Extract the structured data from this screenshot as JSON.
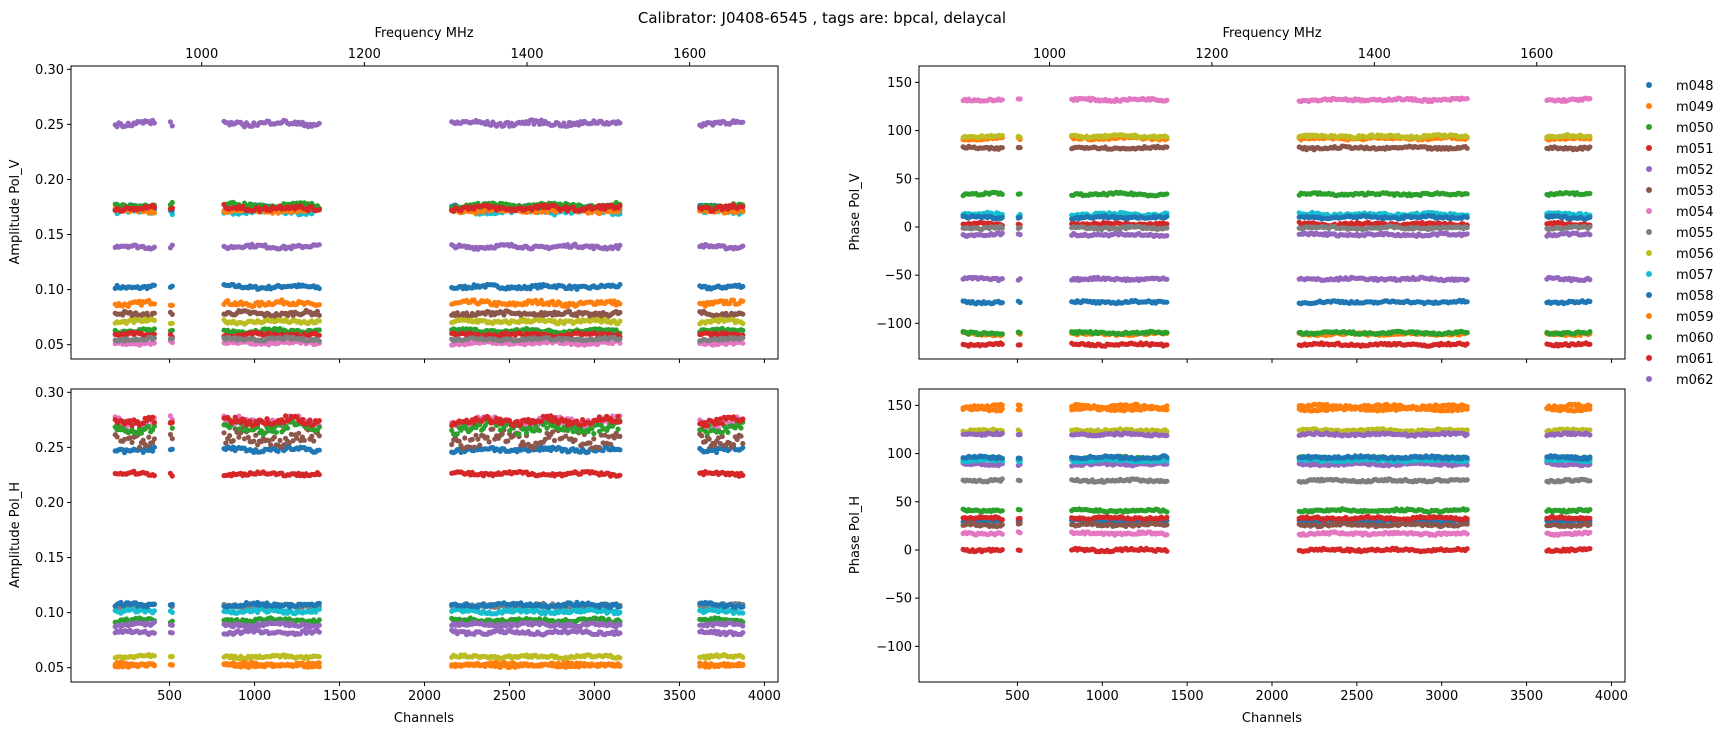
{
  "figure": {
    "suptitle": "Calibrator: J0408-6545 , tags are: bpcal, delaycal"
  },
  "legend": {
    "placement": "right, outside plot area",
    "entries": [
      "m048",
      "m049",
      "m050",
      "m051",
      "m052",
      "m053",
      "m054",
      "m055",
      "m056",
      "m057",
      "m058",
      "m059",
      "m060",
      "m061",
      "m062"
    ]
  },
  "palette": [
    "#1f77b4",
    "#ff7f0e",
    "#2ca02c",
    "#d62728",
    "#9467bd",
    "#8c564b",
    "#e377c2",
    "#7f7f7f",
    "#bcbd22",
    "#17becf"
  ],
  "chart_data": [
    {
      "type": "scatter",
      "panel": "top-left",
      "ylabel": "Amplitude Pol_V",
      "xlabel": "",
      "top_xlabel": "Frequency MHz",
      "xlim": [
        -80,
        4080
      ],
      "ylim": [
        0.037,
        0.303
      ],
      "yticks": [
        "0.05",
        "0.10",
        "0.15",
        "0.20",
        "0.25",
        "0.30"
      ],
      "top_ticks": [
        "1000",
        "1200",
        "1400",
        "1600"
      ],
      "series": [
        {
          "name": "m048",
          "y": 0.1025,
          "noise": 0.0015
        },
        {
          "name": "m049",
          "y": 0.0875,
          "noise": 0.002
        },
        {
          "name": "m050",
          "y": 0.0625,
          "noise": 0.0015
        },
        {
          "name": "m051",
          "y": 0.059,
          "noise": 0.0015
        },
        {
          "name": "m052",
          "y": 0.139,
          "noise": 0.0015
        },
        {
          "name": "m053",
          "y": 0.078,
          "noise": 0.002
        },
        {
          "name": "m054",
          "y": 0.0515,
          "noise": 0.0012
        },
        {
          "name": "m055",
          "y": 0.055,
          "noise": 0.0012
        },
        {
          "name": "m056",
          "y": 0.071,
          "noise": 0.0015
        },
        {
          "name": "m057",
          "y": 0.171,
          "noise": 0.002
        },
        {
          "name": "m058",
          "y": 0.174,
          "noise": 0.002
        },
        {
          "name": "m059",
          "y": 0.172,
          "noise": 0.002
        },
        {
          "name": "m060",
          "y": 0.176,
          "noise": 0.002
        },
        {
          "name": "m061",
          "y": 0.174,
          "noise": 0.002
        },
        {
          "name": "m062",
          "y": 0.251,
          "noise": 0.002
        }
      ]
    },
    {
      "type": "scatter",
      "panel": "top-right",
      "ylabel": "Phase Pol_V",
      "xlabel": "",
      "top_xlabel": "Frequency MHz",
      "xlim": [
        -80,
        4080
      ],
      "ylim": [
        -137,
        167
      ],
      "yticks": [
        "−100",
        "−50",
        "0",
        "50",
        "100",
        "150"
      ],
      "top_ticks": [
        "1000",
        "1200",
        "1400",
        "1600"
      ],
      "series": [
        {
          "name": "m048",
          "y": -78,
          "noise": 1.2
        },
        {
          "name": "m049",
          "y": 92,
          "noise": 1.2
        },
        {
          "name": "m050",
          "y": 34,
          "noise": 1.2
        },
        {
          "name": "m051",
          "y": 3,
          "noise": 1.2
        },
        {
          "name": "m052",
          "y": -54,
          "noise": 1.2
        },
        {
          "name": "m053",
          "y": 82,
          "noise": 1.2
        },
        {
          "name": "m054",
          "y": 132,
          "noise": 1.2
        },
        {
          "name": "m055",
          "y": -1,
          "noise": 1.2
        },
        {
          "name": "m056",
          "y": 94,
          "noise": 1.2
        },
        {
          "name": "m057",
          "y": 13,
          "noise": 1.5
        },
        {
          "name": "m058",
          "y": 10,
          "noise": 1.2
        },
        {
          "name": "m059",
          "y": -111,
          "noise": 1.2
        },
        {
          "name": "m060",
          "y": -110,
          "noise": 1.2
        },
        {
          "name": "m061",
          "y": -122,
          "noise": 1.2
        },
        {
          "name": "m062",
          "y": -8,
          "noise": 1.2
        }
      ]
    },
    {
      "type": "scatter",
      "panel": "bottom-left",
      "ylabel": "Amplitude Pol_H",
      "xlabel": "Channels",
      "xlim": [
        -80,
        4080
      ],
      "ylim": [
        0.037,
        0.303
      ],
      "xticks": [
        "500",
        "1000",
        "1500",
        "2000",
        "2500",
        "3000",
        "3500",
        "4000"
      ],
      "yticks": [
        "0.05",
        "0.10",
        "0.15",
        "0.20",
        "0.25",
        "0.30"
      ],
      "series": [
        {
          "name": "m048",
          "y": 0.248,
          "noise": 0.002
        },
        {
          "name": "m049",
          "y": 0.052,
          "noise": 0.0012
        },
        {
          "name": "m050",
          "y": 0.093,
          "noise": 0.0015
        },
        {
          "name": "m051",
          "y": 0.226,
          "noise": 0.0015
        },
        {
          "name": "m052",
          "y": 0.082,
          "noise": 0.0015
        },
        {
          "name": "m053",
          "y": 0.258,
          "noise": 0.006
        },
        {
          "name": "m054",
          "y": 0.273,
          "noise": 0.004
        },
        {
          "name": "m055",
          "y": 0.106,
          "noise": 0.0015
        },
        {
          "name": "m056",
          "y": 0.06,
          "noise": 0.0012
        },
        {
          "name": "m057",
          "y": 0.101,
          "noise": 0.0015
        },
        {
          "name": "m058",
          "y": 0.107,
          "noise": 0.0015
        },
        {
          "name": "m059",
          "y": 0.053,
          "noise": 0.0012
        },
        {
          "name": "m060",
          "y": 0.268,
          "noise": 0.004
        },
        {
          "name": "m061",
          "y": 0.274,
          "noise": 0.003
        },
        {
          "name": "m062",
          "y": 0.089,
          "noise": 0.0015
        }
      ]
    },
    {
      "type": "scatter",
      "panel": "bottom-right",
      "ylabel": "Phase Pol_H",
      "xlabel": "Channels",
      "xlim": [
        -80,
        4080
      ],
      "ylim": [
        -137,
        167
      ],
      "xticks": [
        "500",
        "1000",
        "1500",
        "2000",
        "2500",
        "3000",
        "3500",
        "4000"
      ],
      "yticks": [
        "−100",
        "−50",
        "0",
        "50",
        "100",
        "150"
      ],
      "series": [
        {
          "name": "m048",
          "y": 30,
          "noise": 1.2
        },
        {
          "name": "m049",
          "y": 149,
          "noise": 1.5
        },
        {
          "name": "m050",
          "y": 95,
          "noise": 1.5
        },
        {
          "name": "m051",
          "y": 33,
          "noise": 1.2
        },
        {
          "name": "m052",
          "y": 89,
          "noise": 1.2
        },
        {
          "name": "m053",
          "y": 26,
          "noise": 1.2
        },
        {
          "name": "m054",
          "y": 17,
          "noise": 1.2
        },
        {
          "name": "m055",
          "y": 72,
          "noise": 1.2
        },
        {
          "name": "m056",
          "y": 124,
          "noise": 1.2
        },
        {
          "name": "m057",
          "y": 93,
          "noise": 1.2
        },
        {
          "name": "m058",
          "y": 96,
          "noise": 1.2
        },
        {
          "name": "m059",
          "y": 146,
          "noise": 1.2
        },
        {
          "name": "m060",
          "y": 41,
          "noise": 1.2
        },
        {
          "name": "m061",
          "y": 0,
          "noise": 1.2
        },
        {
          "name": "m062",
          "y": 120,
          "noise": 1.2
        }
      ]
    }
  ],
  "channel_ranges": [
    [
      180,
      420
    ],
    [
      505,
      525
    ],
    [
      820,
      1390
    ],
    [
      2160,
      3150
    ],
    [
      3620,
      3880
    ]
  ]
}
